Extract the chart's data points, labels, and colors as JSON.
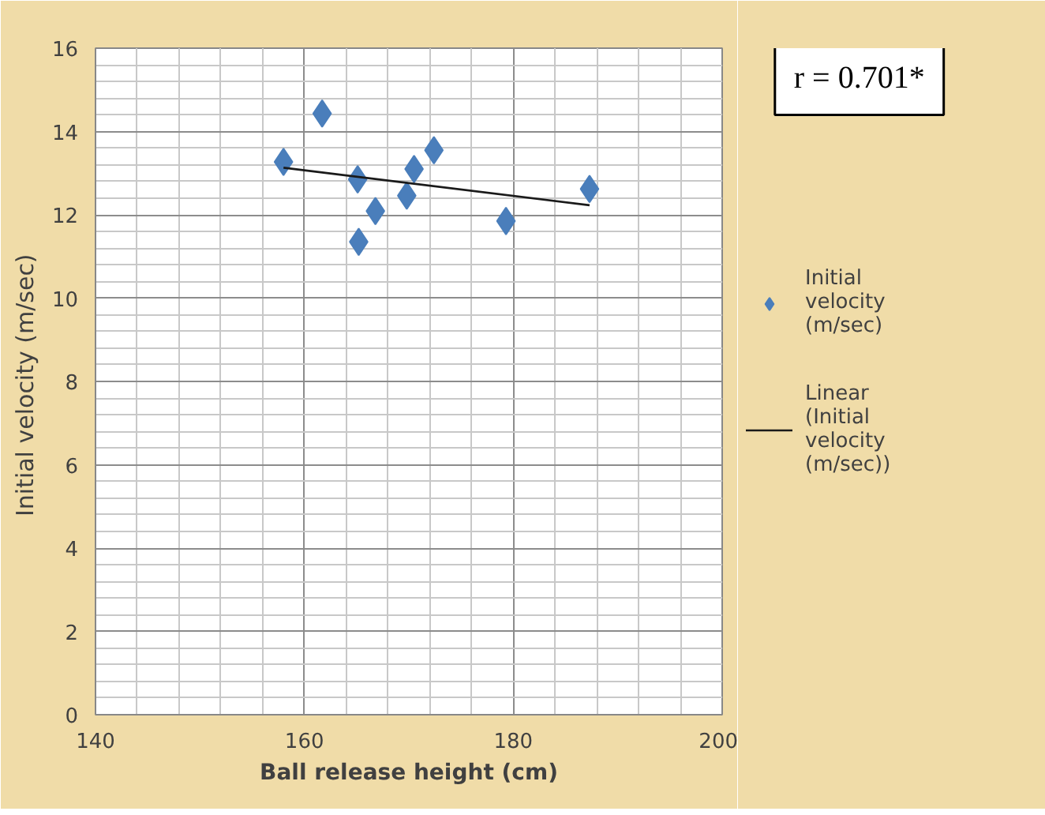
{
  "chart_data": {
    "type": "scatter",
    "xlabel": "Ball release height (cm)",
    "ylabel": "Initial  velocity (m/sec)",
    "annotations": [
      "r = 0.701*"
    ],
    "xlim": [
      140,
      200
    ],
    "xticks": [
      140,
      160,
      180,
      200
    ],
    "ylim": [
      0,
      16
    ],
    "yticks": [
      0,
      2,
      4,
      6,
      8,
      10,
      12,
      14,
      16
    ],
    "grid": true,
    "legend": "right",
    "series": [
      {
        "name": "Initial velocity (m/sec)",
        "marker": "diamond",
        "color": "#4a7ebb",
        "x": [
          158.0,
          161.7,
          165.1,
          166.8,
          165.2,
          169.8,
          170.5,
          172.4,
          179.3,
          187.3
        ],
        "values": [
          13.27,
          14.43,
          12.85,
          12.09,
          11.35,
          12.46,
          13.1,
          13.55,
          11.85,
          12.62
        ]
      },
      {
        "name": "Linear (Initial velocity (m/sec))",
        "type": "line",
        "color": "#1a1a1a",
        "line_style": "solid",
        "x": [
          158.0,
          187.3
        ],
        "values": [
          13.13,
          12.23
        ]
      }
    ]
  }
}
